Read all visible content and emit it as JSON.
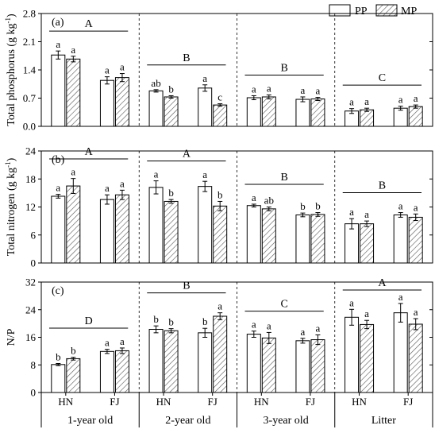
{
  "legend": {
    "items": [
      {
        "label": "PP",
        "pattern": "open"
      },
      {
        "label": "MP",
        "pattern": "hatched"
      }
    ],
    "placement": "top-right"
  },
  "colors": {
    "ink": "#000000",
    "bar_fill": "#ffffff",
    "hatch": "#555555"
  },
  "x_axis": {
    "sites": [
      "HN",
      "FJ"
    ],
    "groups": [
      "1-year old",
      "2-year old",
      "3-year old",
      "Litter"
    ]
  },
  "chart_data": [
    {
      "type": "bar",
      "panel": "(a)",
      "ylabel": "Total phosphorus (g kg-1)",
      "ylabel_main": "Total phosphorus (g kg",
      "ylabel_sup": "-1",
      "ylabel_close": ")",
      "ylim": [
        0,
        2.8
      ],
      "yticks": [
        "0.0",
        "0.7",
        "1.4",
        "2.1",
        "2.8"
      ],
      "yticks_values": [
        0,
        0.7,
        1.4,
        2.1,
        2.8
      ],
      "series": [
        {
          "name": "PP",
          "values": [
            1.77,
            1.14,
            0.88,
            0.95,
            0.71,
            0.67,
            0.38,
            0.45
          ],
          "errors": [
            0.1,
            0.09,
            0.03,
            0.08,
            0.05,
            0.06,
            0.06,
            0.05
          ],
          "letters": [
            "a",
            "a",
            "ab",
            "a",
            "a",
            "a",
            "a",
            "a"
          ]
        },
        {
          "name": "MP",
          "values": [
            1.67,
            1.21,
            0.73,
            0.53,
            0.73,
            0.68,
            0.41,
            0.49
          ],
          "errors": [
            0.07,
            0.1,
            0.03,
            0.03,
            0.05,
            0.04,
            0.04,
            0.04
          ],
          "letters": [
            "a",
            "a",
            "b",
            "c",
            "a",
            "a",
            "a",
            "a"
          ]
        }
      ],
      "group_letters": [
        "A",
        "B",
        "B",
        "C"
      ]
    },
    {
      "type": "bar",
      "panel": "(b)",
      "ylabel": "Total nitrogen (g kg-1)",
      "ylabel_main": "Total nitrogen (g kg",
      "ylabel_sup": "-1",
      "ylabel_close": ")",
      "ylim": [
        0,
        24
      ],
      "yticks": [
        "0",
        "6",
        "12",
        "18",
        "24"
      ],
      "yticks_values": [
        0,
        6,
        12,
        18,
        24
      ],
      "series": [
        {
          "name": "PP",
          "values": [
            14.3,
            13.6,
            16.2,
            16.4,
            12.3,
            10.3,
            8.4,
            10.3
          ],
          "errors": [
            0.4,
            1.0,
            1.4,
            1.1,
            0.3,
            0.4,
            1.1,
            0.5
          ],
          "letters": [
            "a",
            "a",
            "a",
            "a",
            "a",
            "b",
            "a",
            "a"
          ]
        },
        {
          "name": "MP",
          "values": [
            16.5,
            14.6,
            13.2,
            12.2,
            11.6,
            10.4,
            8.4,
            9.8
          ],
          "errors": [
            1.6,
            1.0,
            0.4,
            1.0,
            0.4,
            0.4,
            0.6,
            0.7
          ],
          "letters": [
            "a",
            "a",
            "b",
            "b",
            "ab",
            "b",
            "a",
            "a"
          ]
        }
      ],
      "group_letters": [
        "A",
        "A",
        "B",
        "B"
      ]
    },
    {
      "type": "bar",
      "panel": "(c)",
      "ylabel": "N/P",
      "ylim": [
        0,
        32
      ],
      "yticks": [
        "0",
        "8",
        "16",
        "24",
        "32"
      ],
      "yticks_values": [
        0,
        8,
        16,
        24,
        32
      ],
      "series": [
        {
          "name": "PP",
          "values": [
            8.1,
            11.9,
            18.3,
            17.3,
            16.9,
            15.0,
            21.8,
            23.1
          ],
          "errors": [
            0.3,
            0.6,
            1.0,
            1.3,
            0.9,
            0.7,
            2.3,
            2.7
          ],
          "letters": [
            "b",
            "a",
            "b",
            "b",
            "a",
            "a",
            "a",
            "a"
          ]
        },
        {
          "name": "MP",
          "values": [
            9.8,
            12.1,
            17.9,
            22.1,
            15.8,
            15.3,
            19.7,
            19.8
          ],
          "errors": [
            0.4,
            0.8,
            0.6,
            1.0,
            1.6,
            1.4,
            1.2,
            1.6
          ],
          "letters": [
            "b",
            "a",
            "b",
            "a",
            "a",
            "a",
            "a",
            "a"
          ]
        }
      ],
      "group_letters": [
        "D",
        "B",
        "C",
        "A"
      ]
    }
  ]
}
